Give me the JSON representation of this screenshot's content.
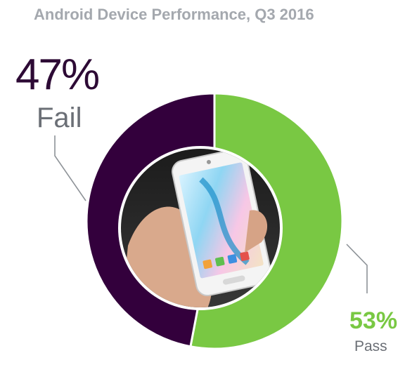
{
  "chart_data": {
    "type": "pie",
    "title": "Android Device Performance, Q3 2016",
    "categories": [
      "Fail",
      "Pass"
    ],
    "series": [
      {
        "values": [
          47,
          53
        ]
      }
    ],
    "labels": [
      {
        "category": "Fail",
        "percent_text": "47%",
        "label_text": "Fail"
      },
      {
        "category": "Pass",
        "percent_text": "53%",
        "label_text": "Pass"
      }
    ],
    "colors": {
      "Fail": "#33003c",
      "Pass": "#79c843"
    },
    "center_image": "hand-holding-phone"
  }
}
